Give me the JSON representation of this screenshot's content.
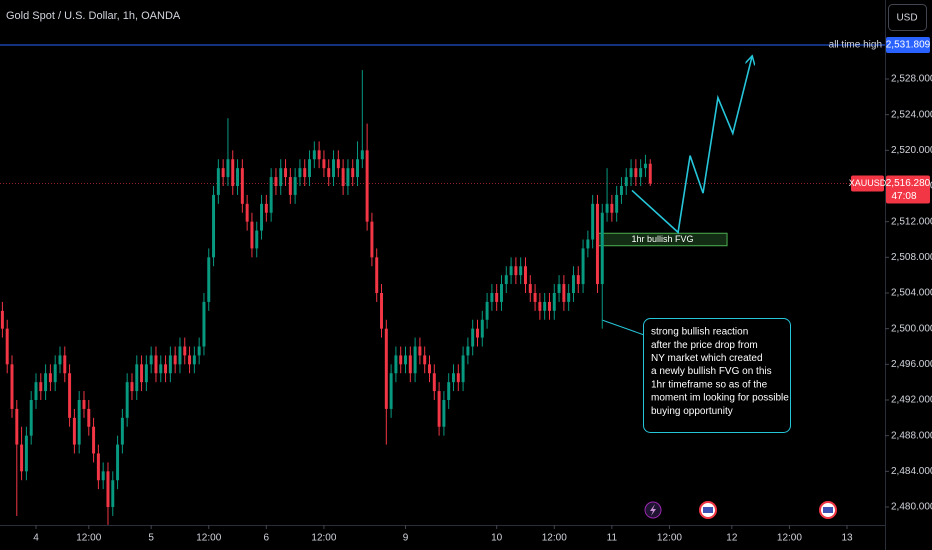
{
  "chart_data": {
    "type": "candlestick",
    "title": "Gold Spot / U.S. Dollar, 1h, OANDA",
    "currency": "USD",
    "symbol": "XAUUSD",
    "up_color": "#089981",
    "down_color": "#f23645",
    "ohlc": [
      [
        2502,
        2503,
        2499,
        2500
      ],
      [
        2500,
        2501,
        2495,
        2496
      ],
      [
        2496,
        2497,
        2490,
        2491
      ],
      [
        2491,
        2492,
        2479,
        2487
      ],
      [
        2487,
        2489,
        2483,
        2484
      ],
      [
        2484,
        2489,
        2483,
        2488
      ],
      [
        2488,
        2493,
        2487,
        2492
      ],
      [
        2492,
        2495,
        2491,
        2494
      ],
      [
        2494,
        2495,
        2492,
        2493
      ],
      [
        2493,
        2496,
        2492,
        2495
      ],
      [
        2495,
        2496,
        2493,
        2494
      ],
      [
        2494,
        2497,
        2493,
        2496
      ],
      [
        2496,
        2498,
        2495,
        2497
      ],
      [
        2497,
        2498,
        2494,
        2495
      ],
      [
        2495,
        2496,
        2489,
        2490
      ],
      [
        2490,
        2491,
        2486,
        2487
      ],
      [
        2487,
        2493,
        2486,
        2492
      ],
      [
        2492,
        2493,
        2490,
        2491
      ],
      [
        2491,
        2492,
        2488,
        2489
      ],
      [
        2489,
        2490,
        2485,
        2486
      ],
      [
        2486,
        2487,
        2482,
        2483
      ],
      [
        2483,
        2485,
        2482,
        2484
      ],
      [
        2484,
        2485,
        2478,
        2480
      ],
      [
        2480,
        2484,
        2479,
        2483
      ],
      [
        2483,
        2488,
        2482,
        2487
      ],
      [
        2487,
        2491,
        2486,
        2490
      ],
      [
        2490,
        2495,
        2489,
        2494
      ],
      [
        2494,
        2495,
        2492,
        2493
      ],
      [
        2493,
        2497,
        2492,
        2496
      ],
      [
        2496,
        2497,
        2493,
        2494
      ],
      [
        2494,
        2497,
        2493,
        2496
      ],
      [
        2496,
        2498,
        2495,
        2497
      ],
      [
        2497,
        2498,
        2494,
        2495
      ],
      [
        2495,
        2497,
        2494,
        2496
      ],
      [
        2496,
        2497,
        2494,
        2495
      ],
      [
        2495,
        2498,
        2494,
        2497
      ],
      [
        2497,
        2498,
        2495,
        2496
      ],
      [
        2496,
        2499,
        2495,
        2498
      ],
      [
        2498,
        2499,
        2496,
        2497
      ],
      [
        2497,
        2498,
        2495,
        2496
      ],
      [
        2496,
        2498,
        2495,
        2497
      ],
      [
        2497,
        2499,
        2496,
        2498
      ],
      [
        2498,
        2504,
        2497,
        2503
      ],
      [
        2503,
        2509,
        2502,
        2508
      ],
      [
        2508,
        2516,
        2507,
        2515
      ],
      [
        2515,
        2519,
        2514,
        2518
      ],
      [
        2518,
        2519,
        2516,
        2517
      ],
      [
        2517,
        2523.6,
        2516,
        2519
      ],
      [
        2519,
        2520,
        2515,
        2516
      ],
      [
        2516,
        2519,
        2515,
        2518
      ],
      [
        2518,
        2519,
        2513,
        2514
      ],
      [
        2514,
        2515,
        2511,
        2512
      ],
      [
        2512,
        2513,
        2508,
        2509
      ],
      [
        2509,
        2512,
        2508,
        2511
      ],
      [
        2511,
        2515,
        2510,
        2514
      ],
      [
        2514,
        2515,
        2512,
        2513
      ],
      [
        2513,
        2518,
        2512,
        2517
      ],
      [
        2517,
        2518,
        2515,
        2516
      ],
      [
        2516,
        2519,
        2515,
        2518
      ],
      [
        2518,
        2519,
        2516,
        2517
      ],
      [
        2517,
        2518,
        2514,
        2515
      ],
      [
        2515,
        2518,
        2514,
        2517
      ],
      [
        2517,
        2519,
        2516,
        2518
      ],
      [
        2518,
        2519,
        2516,
        2517
      ],
      [
        2517,
        2520,
        2516,
        2519
      ],
      [
        2519,
        2521,
        2518,
        2520
      ],
      [
        2520,
        2521,
        2518,
        2519
      ],
      [
        2519,
        2520,
        2517,
        2518
      ],
      [
        2518,
        2519,
        2516,
        2517
      ],
      [
        2517,
        2520,
        2516,
        2519
      ],
      [
        2519,
        2520,
        2517,
        2518
      ],
      [
        2518,
        2519,
        2515,
        2516
      ],
      [
        2516,
        2519,
        2515,
        2518
      ],
      [
        2518,
        2519,
        2516,
        2517
      ],
      [
        2517,
        2521,
        2516,
        2519
      ],
      [
        2519,
        2529,
        2518,
        2520
      ],
      [
        2520,
        2523,
        2511,
        2512
      ],
      [
        2512,
        2513,
        2507,
        2508
      ],
      [
        2508,
        2509,
        2503,
        2504
      ],
      [
        2504,
        2505,
        2499,
        2500
      ],
      [
        2500,
        2501,
        2487,
        2491
      ],
      [
        2491,
        2496,
        2490,
        2495
      ],
      [
        2495,
        2498,
        2494,
        2497
      ],
      [
        2497,
        2498,
        2495,
        2496
      ],
      [
        2496,
        2498,
        2495,
        2497
      ],
      [
        2497,
        2498,
        2494,
        2495
      ],
      [
        2495,
        2499,
        2494,
        2498
      ],
      [
        2498,
        2499,
        2496,
        2497
      ],
      [
        2497,
        2498,
        2495,
        2496
      ],
      [
        2496,
        2497,
        2494,
        2495
      ],
      [
        2495,
        2496,
        2492,
        2493
      ],
      [
        2493,
        2494,
        2488,
        2489
      ],
      [
        2489,
        2493,
        2488,
        2492
      ],
      [
        2492,
        2495,
        2491,
        2494
      ],
      [
        2494,
        2496,
        2493,
        2495
      ],
      [
        2495,
        2496,
        2493,
        2494
      ],
      [
        2494,
        2498,
        2493,
        2497
      ],
      [
        2497,
        2499,
        2496,
        2498
      ],
      [
        2498,
        2501,
        2497,
        2500
      ],
      [
        2500,
        2501,
        2498,
        2499
      ],
      [
        2499,
        2502,
        2498,
        2501
      ],
      [
        2501,
        2504,
        2500,
        2503
      ],
      [
        2503,
        2505,
        2502,
        2504
      ],
      [
        2504,
        2505,
        2502,
        2503
      ],
      [
        2503,
        2506,
        2502,
        2505
      ],
      [
        2505,
        2507,
        2504,
        2506
      ],
      [
        2506,
        2508,
        2505,
        2507
      ],
      [
        2507,
        2508,
        2505,
        2506
      ],
      [
        2506,
        2508,
        2505,
        2507
      ],
      [
        2507,
        2508,
        2504,
        2505
      ],
      [
        2505,
        2506,
        2503,
        2504
      ],
      [
        2504,
        2505,
        2502,
        2503
      ],
      [
        2503,
        2504,
        2501,
        2502
      ],
      [
        2502,
        2504,
        2501,
        2503
      ],
      [
        2503,
        2504,
        2501,
        2502
      ],
      [
        2502,
        2505,
        2501,
        2504
      ],
      [
        2504,
        2506,
        2503,
        2505
      ],
      [
        2505,
        2506,
        2502,
        2503
      ],
      [
        2503,
        2505,
        2502,
        2504
      ],
      [
        2504,
        2507,
        2503,
        2506
      ],
      [
        2506,
        2507,
        2504,
        2505
      ],
      [
        2505,
        2510,
        2504,
        2509
      ],
      [
        2509,
        2511,
        2508,
        2510
      ],
      [
        2510,
        2515,
        2509,
        2514
      ],
      [
        2514,
        2515,
        2504,
        2505
      ],
      [
        2505,
        2514,
        2500,
        2513
      ],
      [
        2513,
        2518,
        2512,
        2514
      ],
      [
        2514,
        2515,
        2512,
        2513
      ],
      [
        2513,
        2516,
        2512,
        2515
      ],
      [
        2515,
        2517,
        2514,
        2516
      ],
      [
        2516,
        2518,
        2515,
        2517
      ],
      [
        2517,
        2519,
        2516,
        2518
      ],
      [
        2518,
        2519,
        2516,
        2517
      ],
      [
        2517,
        2519,
        2516,
        2518
      ],
      [
        2518,
        2519.5,
        2517,
        2518.5
      ],
      [
        2518.5,
        2519,
        2516,
        2516.28
      ]
    ],
    "xlim": [
      -0.5,
      183.5
    ],
    "xticks": [
      {
        "value": 7,
        "label": "4"
      },
      {
        "value": 18,
        "label": "12:00"
      },
      {
        "value": 31,
        "label": "5"
      },
      {
        "value": 43,
        "label": "12:00"
      },
      {
        "value": 55,
        "label": "6"
      },
      {
        "value": 67,
        "label": "12:00"
      },
      {
        "value": 84,
        "label": "9"
      },
      {
        "value": 103,
        "label": "10"
      },
      {
        "value": 115,
        "label": "12:00"
      },
      {
        "value": 127,
        "label": "11"
      },
      {
        "value": 139,
        "label": "12:00"
      },
      {
        "value": 152,
        "label": "12"
      },
      {
        "value": 164,
        "label": "12:00"
      },
      {
        "value": 176,
        "label": "13"
      }
    ],
    "ylim": [
      2477.98,
      2536.86
    ],
    "yticks": [
      {
        "value": 2480,
        "label": "2,480.000"
      },
      {
        "value": 2484,
        "label": "2,484.000"
      },
      {
        "value": 2488,
        "label": "2,488.000"
      },
      {
        "value": 2492,
        "label": "2,492.000"
      },
      {
        "value": 2496,
        "label": "2,496.000"
      },
      {
        "value": 2500,
        "label": "2,500.000"
      },
      {
        "value": 2504,
        "label": "2,504.000"
      },
      {
        "value": 2508,
        "label": "2,508.000"
      },
      {
        "value": 2512,
        "label": "2,512.000"
      },
      {
        "value": 2516,
        "label": "2,516.000"
      },
      {
        "value": 2520,
        "label": "2,520.000"
      },
      {
        "value": 2524,
        "label": "2,524.000"
      },
      {
        "value": 2528,
        "label": "2,528.000"
      }
    ],
    "last_price": {
      "value": 2516.28,
      "label": "2,516.280"
    },
    "countdown": "47:08",
    "ath": {
      "label": "all time high",
      "value": 2531.809,
      "value_label": "2,531.809",
      "color": "#2962ff"
    },
    "fvg": {
      "label": "1hr bullish FVG",
      "x": [
        124.1,
        151
      ],
      "y": [
        2509.3,
        2510.7
      ],
      "color": "#4caf50"
    },
    "projection": {
      "x": [
        131.2,
        140.8,
        143.3,
        146,
        149.1,
        152.2,
        156.2
      ],
      "y": [
        2515.5,
        2510.8,
        2519.4,
        2515.2,
        2525.9,
        2521.9,
        2530.5
      ],
      "color": "#26c6da"
    },
    "note": [
      "strong bullish reaction",
      "after the price drop from",
      "NY market which created",
      "a newly bullish FVG on this",
      "1hr timeframe so as of the",
      "moment im looking for possible",
      "buying opportunity"
    ]
  }
}
